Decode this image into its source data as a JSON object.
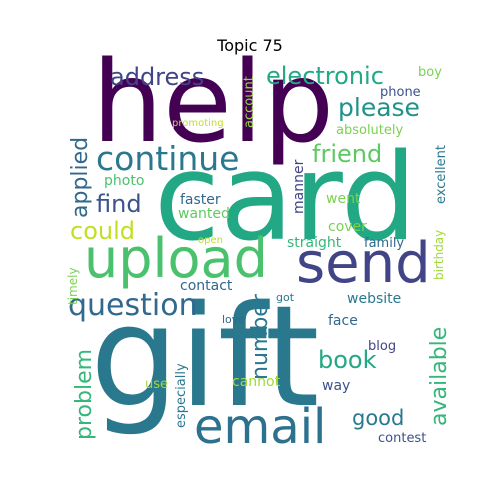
{
  "title": "Topic 75",
  "words": [
    {
      "text": "help",
      "color": "#440154"
    },
    {
      "text": "card",
      "color": "#22a884"
    },
    {
      "text": "gift",
      "color": "#2a788e"
    },
    {
      "text": "upload",
      "color": "#4ac16d"
    },
    {
      "text": "send",
      "color": "#414487"
    },
    {
      "text": "email",
      "color": "#2c728e"
    },
    {
      "text": "continue",
      "color": "#2a788e"
    },
    {
      "text": "question",
      "color": "#31688e"
    },
    {
      "text": "electronic",
      "color": "#22a884"
    },
    {
      "text": "address",
      "color": "#414487"
    },
    {
      "text": "please",
      "color": "#21918c"
    },
    {
      "text": "friend",
      "color": "#5ec962"
    },
    {
      "text": "applied",
      "color": "#31688e"
    },
    {
      "text": "find",
      "color": "#3b528b"
    },
    {
      "text": "could",
      "color": "#c2df23"
    },
    {
      "text": "number",
      "color": "#2a788e"
    },
    {
      "text": "available",
      "color": "#35b779"
    },
    {
      "text": "problem",
      "color": "#35b779"
    },
    {
      "text": "book",
      "color": "#22a884"
    },
    {
      "text": "good",
      "color": "#2a788e"
    },
    {
      "text": "photo",
      "color": "#4ac16d"
    },
    {
      "text": "faster",
      "color": "#31688e"
    },
    {
      "text": "wanted",
      "color": "#5ec962"
    },
    {
      "text": "manner",
      "color": "#414487"
    },
    {
      "text": "went",
      "color": "#7ad151"
    },
    {
      "text": "cover",
      "color": "#7ad151"
    },
    {
      "text": "straight",
      "color": "#35b779"
    },
    {
      "text": "family",
      "color": "#31688e"
    },
    {
      "text": "contact",
      "color": "#31688e"
    },
    {
      "text": "website",
      "color": "#2a788e"
    },
    {
      "text": "face",
      "color": "#31688e"
    },
    {
      "text": "blog",
      "color": "#414487"
    },
    {
      "text": "cannot",
      "color": "#a0da39"
    },
    {
      "text": "way",
      "color": "#3b528b"
    },
    {
      "text": "contest",
      "color": "#3b528b"
    },
    {
      "text": "especially",
      "color": "#2a788e"
    },
    {
      "text": "use",
      "color": "#a0da39"
    },
    {
      "text": "love",
      "color": "#31688e"
    },
    {
      "text": "got",
      "color": "#2a788e"
    },
    {
      "text": "timely",
      "color": "#7ad151"
    },
    {
      "text": "open",
      "color": "#bddf26"
    },
    {
      "text": "promoting",
      "color": "#bddf26"
    },
    {
      "text": "account",
      "color": "#95d840"
    },
    {
      "text": "absolutely",
      "color": "#7ad151"
    },
    {
      "text": "phone",
      "color": "#3b528b"
    },
    {
      "text": "boy",
      "color": "#7ad151"
    },
    {
      "text": "excellent",
      "color": "#2a788e"
    },
    {
      "text": "birthday",
      "color": "#a0da39"
    }
  ]
}
